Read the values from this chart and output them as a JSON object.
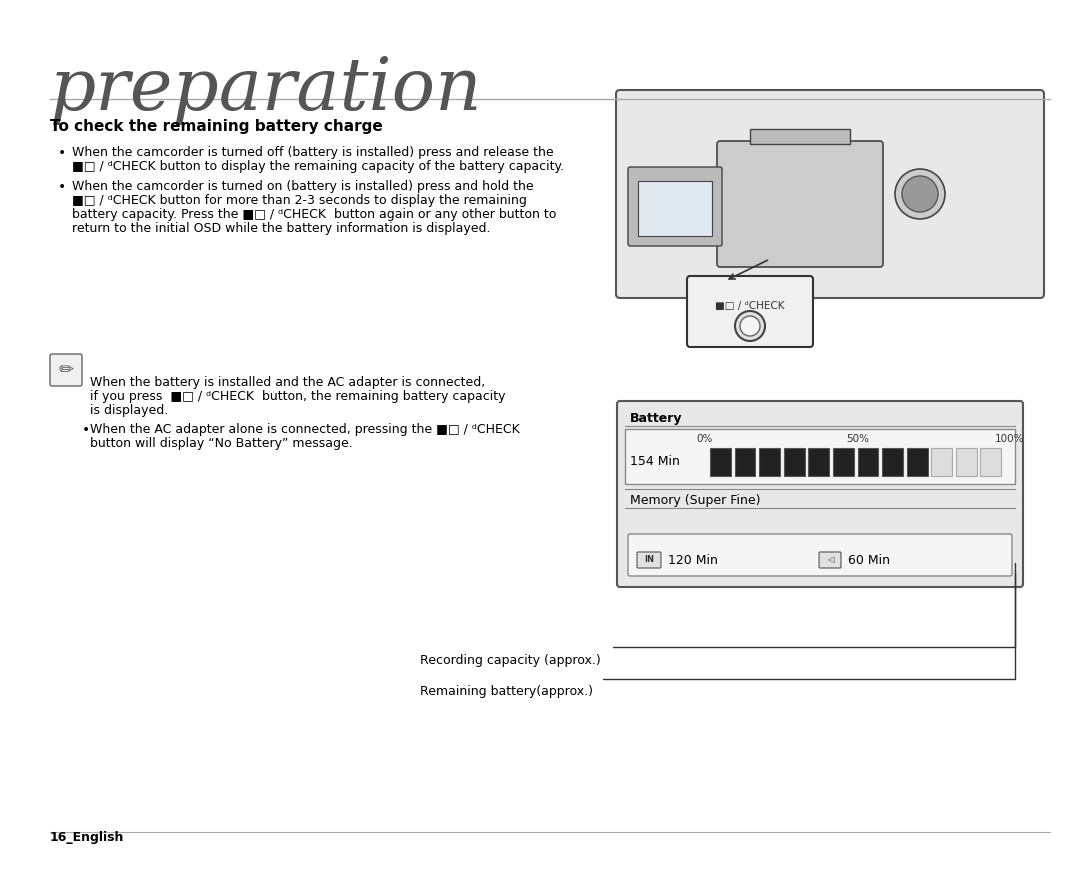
{
  "bg_color": "#ffffff",
  "title": "preparation",
  "title_color": "#555555",
  "title_fontsize": 52,
  "section_heading": "To check the remaining battery charge",
  "bullet1_line1": "When the camcorder is turned off (battery is installed) press and release the",
  "bullet1_line2": "■□ / ᵈCHECK button to display the remaining capacity of the battery capacity.",
  "bullet2_line1": "When the camcorder is turned on (battery is installed) press and hold the",
  "bullet2_line2": "■□ / ᵈCHECK button for more than 2-3 seconds to display the remaining",
  "bullet2_line3": "battery capacity. Press the ■□ / ᵈCHECK  button again or any other button to",
  "bullet2_line4": "return to the initial OSD while the battery information is displayed.",
  "note_line1": "When the battery is installed and the AC adapter is connected,",
  "note_line2": "if you press  ■□ / ᵈCHECK  button, the remaining battery capacity",
  "note_line3": "is displayed.",
  "note_bullet2_line1": "When the AC adapter alone is connected, pressing the ■□ / ᵈCHECK",
  "note_bullet2_line2": "button will display “No Battery” message.",
  "footer_text": "16_English",
  "recording_label": "Recording capacity (approx.)",
  "remaining_label": "Remaining battery(approx.)",
  "battery_label": "Battery",
  "memory_label": "Memory (Super Fine)",
  "percent_0": "0%",
  "percent_50": "50%",
  "percent_100": "100%",
  "time_154": "154 Min",
  "time_120": "120 Min",
  "time_60": "60 Min"
}
